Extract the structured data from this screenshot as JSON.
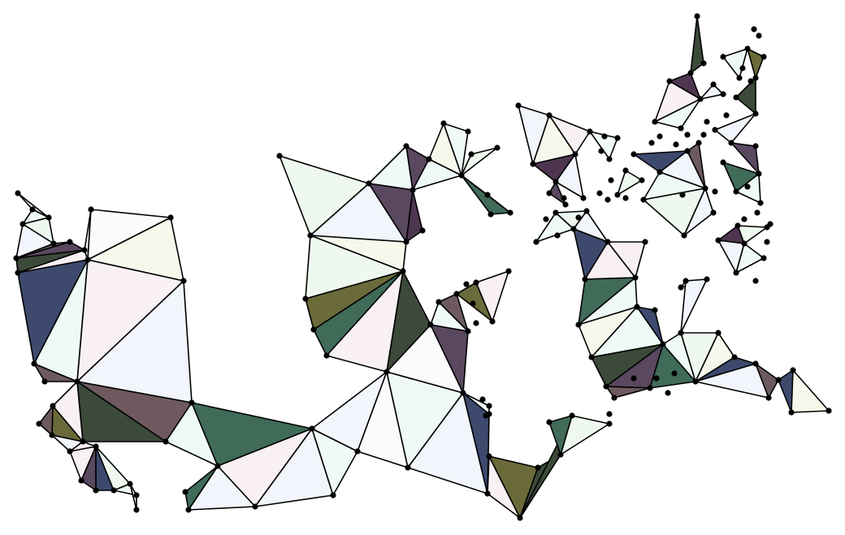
{
  "diagram": {
    "palette": {
      "edge": "#000000",
      "vertex": "#000000",
      "background": "#ffffff",
      "slate_blue": "#3d4a6e",
      "forest_green": "#3f6b58",
      "olive": "#6b6a3a",
      "dark_olive": "#3c4a3a",
      "plum": "#5a4860",
      "mauve": "#6e5a5e",
      "aubergine": "#4e3650",
      "pale_green": "#eef8ee",
      "pale_blue": "#f2f5fb",
      "pale_pink": "#f8f0f2",
      "pale_cream": "#f6f8ec",
      "pale_mint": "#effaf6",
      "white": "#fbfbfb"
    }
  }
}
